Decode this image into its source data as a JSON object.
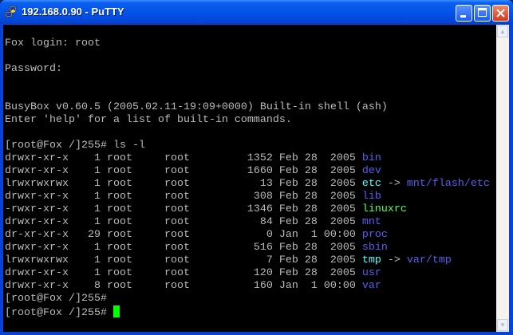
{
  "window": {
    "title": "192.168.0.90 - PuTTY",
    "buttons": [
      "minimize",
      "maximize",
      "close"
    ]
  },
  "colors": {
    "default": "#bbbbbb",
    "blue": "#5c5cf2",
    "cyan": "#55ffff",
    "green": "#55ff55",
    "cursor": "#00ff00"
  },
  "terminal": {
    "lines": [
      [],
      [
        {
          "t": "Fox login: root",
          "c": "default"
        }
      ],
      [],
      [
        {
          "t": "Password:",
          "c": "default"
        }
      ],
      [],
      [],
      [
        {
          "t": "BusyBox v0.60.5 (2005.02.11-19:09+0000) Built-in shell (ash)",
          "c": "default"
        }
      ],
      [
        {
          "t": "Enter 'help' for a list of built-in commands.",
          "c": "default"
        }
      ],
      [],
      [
        {
          "t": "[root@Fox /]255# ls -l",
          "c": "default"
        }
      ],
      [
        {
          "t": "drwxr-xr-x    1 root     root         1352 Feb 28  2005 ",
          "c": "default"
        },
        {
          "t": "bin",
          "c": "blue"
        }
      ],
      [
        {
          "t": "drwxr-xr-x    1 root     root         1660 Feb 28  2005 ",
          "c": "default"
        },
        {
          "t": "dev",
          "c": "blue"
        }
      ],
      [
        {
          "t": "lrwxrwxrwx    1 root     root           13 Feb 28  2005 ",
          "c": "default"
        },
        {
          "t": "etc",
          "c": "cyan"
        },
        {
          "t": " -> ",
          "c": "default"
        },
        {
          "t": "mnt/flash/etc",
          "c": "blue"
        }
      ],
      [
        {
          "t": "drwxr-xr-x    1 root     root          308 Feb 28  2005 ",
          "c": "default"
        },
        {
          "t": "lib",
          "c": "blue"
        }
      ],
      [
        {
          "t": "-rwxr-xr-x    1 root     root         1346 Feb 28  2005 ",
          "c": "default"
        },
        {
          "t": "linuxrc",
          "c": "green"
        }
      ],
      [
        {
          "t": "drwxr-xr-x    1 root     root           84 Feb 28  2005 ",
          "c": "default"
        },
        {
          "t": "mnt",
          "c": "blue"
        }
      ],
      [
        {
          "t": "dr-xr-xr-x   29 root     root            0 Jan  1 00:00 ",
          "c": "default"
        },
        {
          "t": "proc",
          "c": "blue"
        }
      ],
      [
        {
          "t": "drwxr-xr-x    1 root     root          516 Feb 28  2005 ",
          "c": "default"
        },
        {
          "t": "sbin",
          "c": "blue"
        }
      ],
      [
        {
          "t": "lrwxrwxrwx    1 root     root            7 Feb 28  2005 ",
          "c": "default"
        },
        {
          "t": "tmp",
          "c": "cyan"
        },
        {
          "t": " -> ",
          "c": "default"
        },
        {
          "t": "var/tmp",
          "c": "blue"
        }
      ],
      [
        {
          "t": "drwxr-xr-x    1 root     root          120 Feb 28  2005 ",
          "c": "default"
        },
        {
          "t": "usr",
          "c": "blue"
        }
      ],
      [
        {
          "t": "drwxr-xr-x    8 root     root          160 Jan  1 00:00 ",
          "c": "default"
        },
        {
          "t": "var",
          "c": "blue"
        }
      ],
      [
        {
          "t": "[root@Fox /]255#",
          "c": "default"
        }
      ],
      [
        {
          "t": "[root@Fox /]255# ",
          "c": "default"
        },
        {
          "cursor": true
        }
      ]
    ]
  }
}
